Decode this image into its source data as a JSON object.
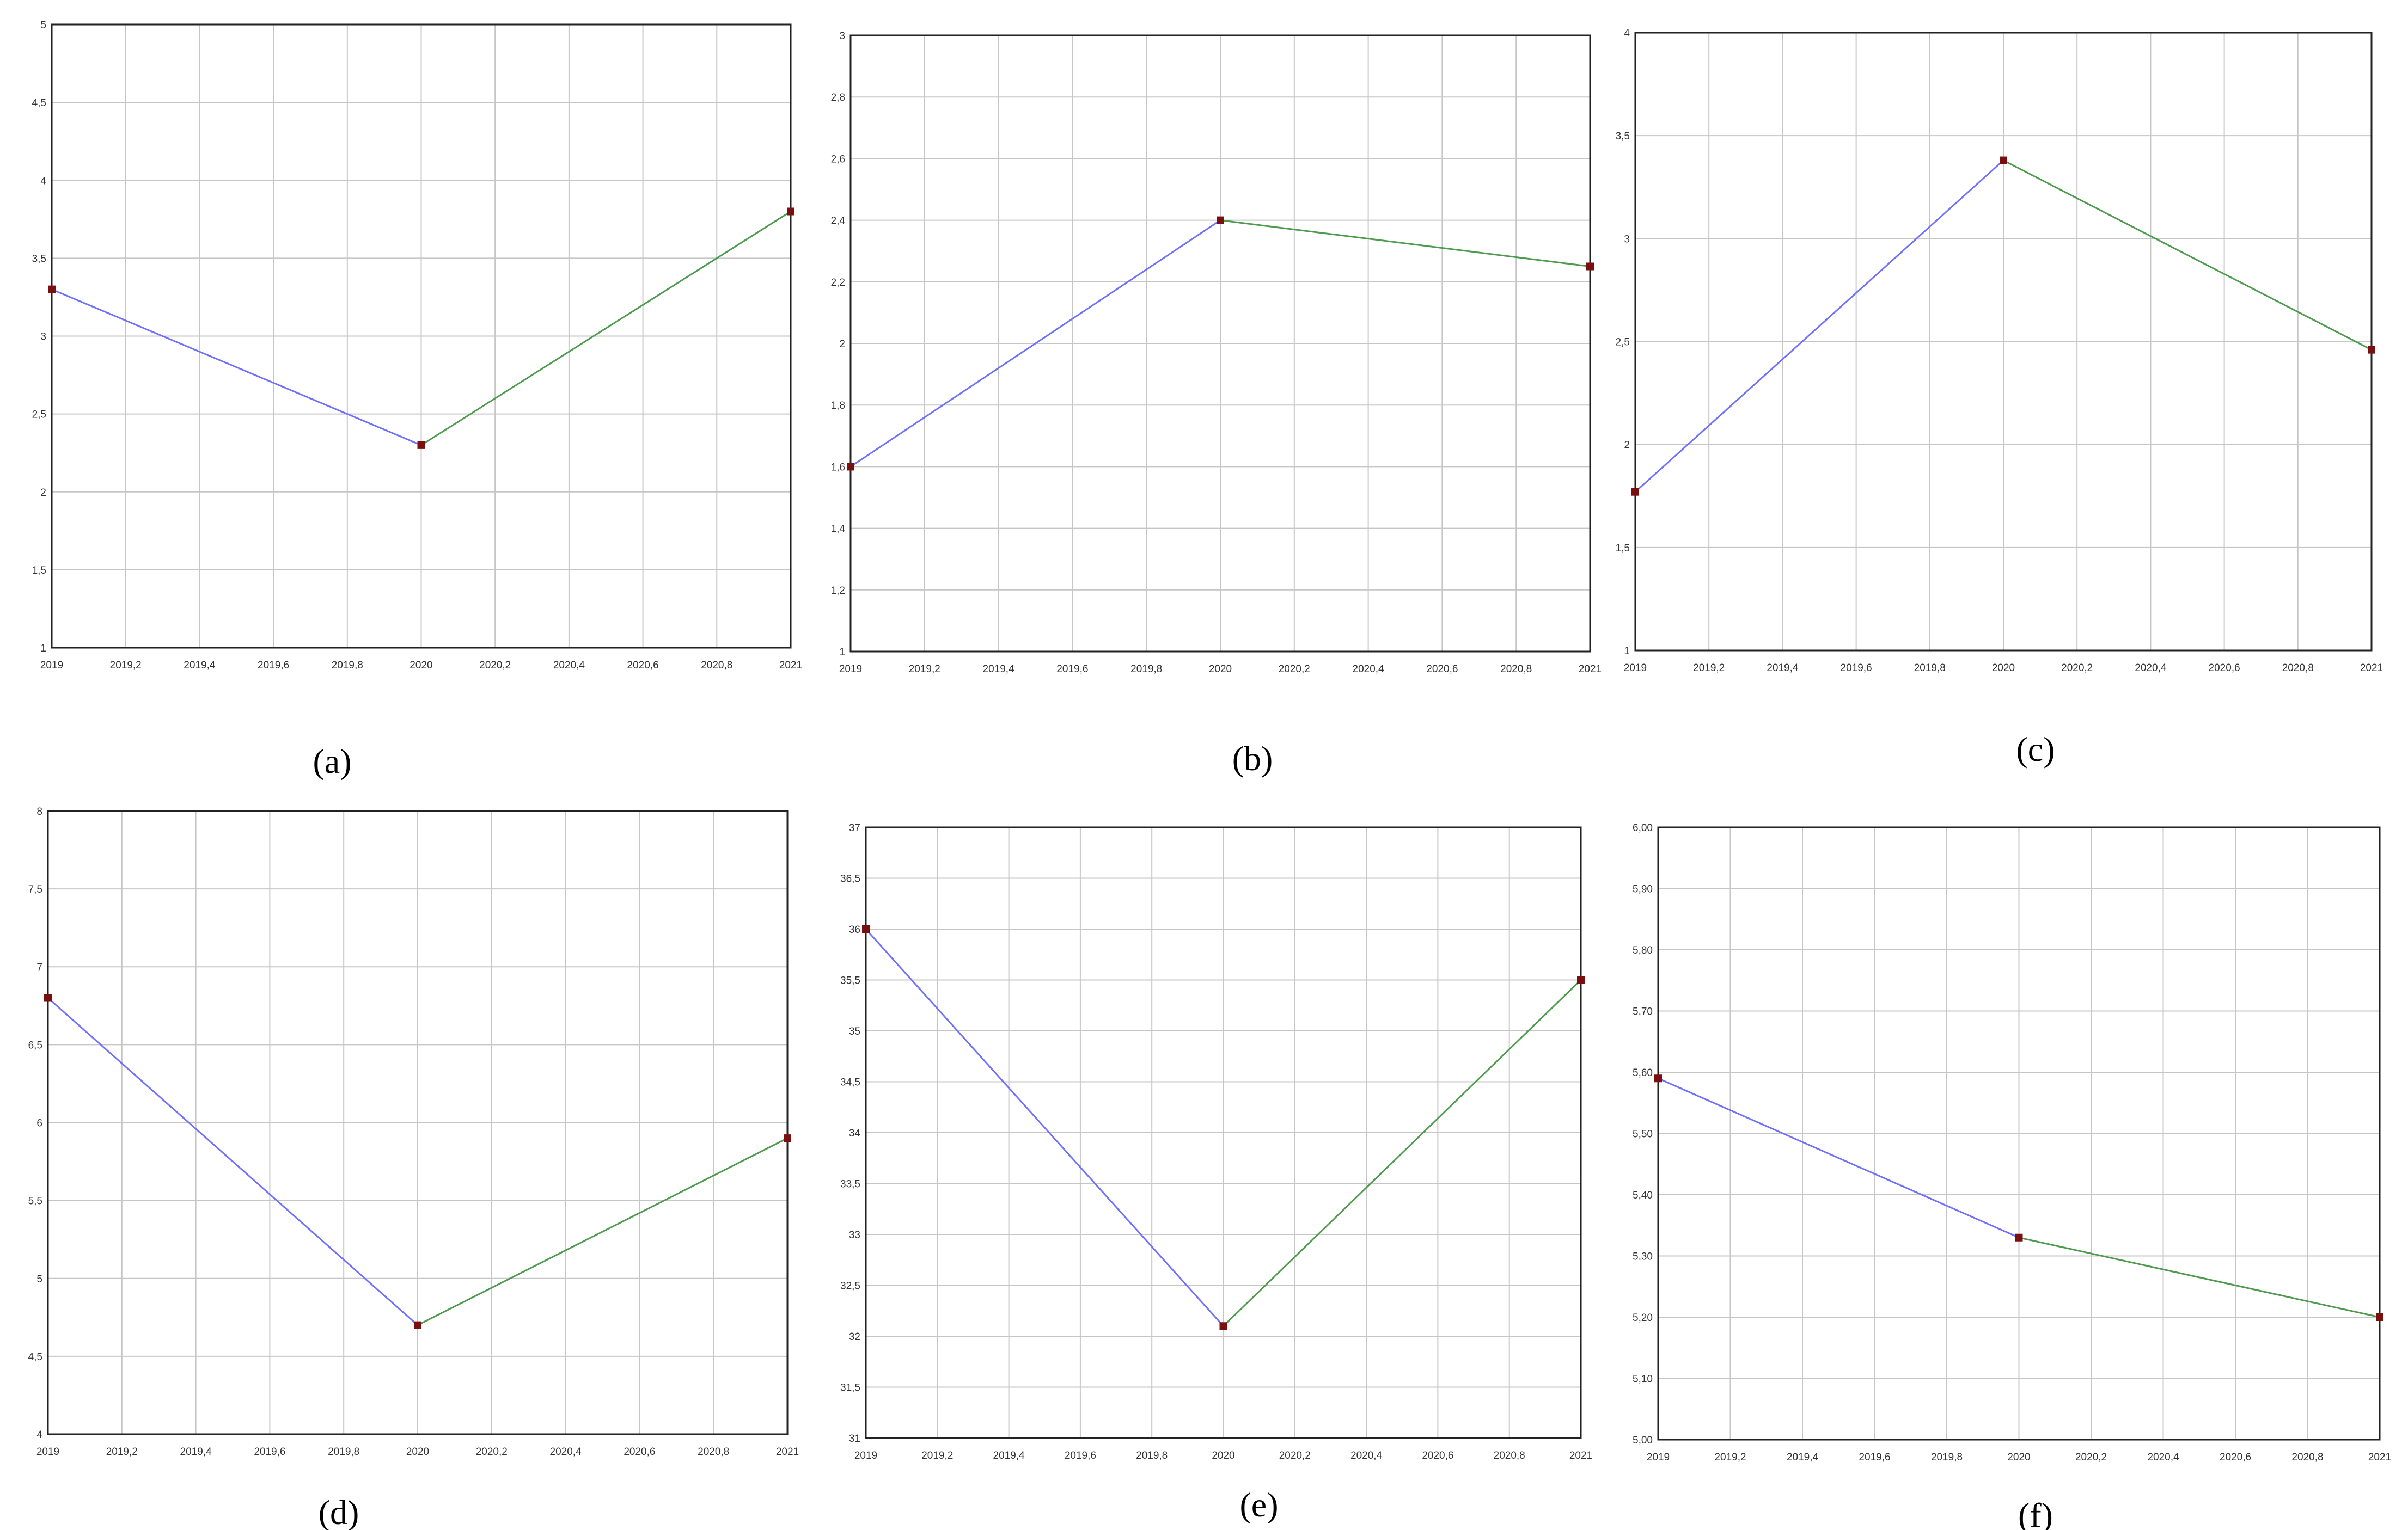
{
  "colors": {
    "series_1": "#7070ff",
    "series_2": "#4e9a4e",
    "marker": "#7a0f0f",
    "grid": "#c6c6c6",
    "frame": "#222222"
  },
  "chart_data": [
    {
      "type": "line",
      "caption": "(a)",
      "x_ticks": [
        "2019",
        "2019,2",
        "2019,4",
        "2019,6",
        "2019,8",
        "2020",
        "2020,2",
        "2020,4",
        "2020,6",
        "2020,8",
        "2021"
      ],
      "y_ticks": [
        "1",
        "1,5",
        "2",
        "2,5",
        "3",
        "3,5",
        "4",
        "4,5",
        "5"
      ],
      "xlim": [
        2019,
        2021
      ],
      "ylim": [
        1,
        5
      ],
      "grid": true,
      "series": [
        {
          "x": [
            2019,
            2020
          ],
          "y": [
            3.3,
            2.3
          ],
          "color": "#7070ff"
        },
        {
          "x": [
            2020,
            2021
          ],
          "y": [
            2.3,
            3.8
          ],
          "color": "#4e9a4e"
        }
      ]
    },
    {
      "type": "line",
      "caption": "(b)",
      "x_ticks": [
        "2019",
        "2019,2",
        "2019,4",
        "2019,6",
        "2019,8",
        "2020",
        "2020,2",
        "2020,4",
        "2020,6",
        "2020,8",
        "2021"
      ],
      "y_ticks": [
        "1",
        "1,2",
        "1,4",
        "1,6",
        "1,8",
        "2",
        "2,2",
        "2,4",
        "2,6",
        "2,8",
        "3"
      ],
      "xlim": [
        2019,
        2021
      ],
      "ylim": [
        1,
        3
      ],
      "grid": true,
      "series": [
        {
          "x": [
            2019,
            2020
          ],
          "y": [
            1.6,
            2.4
          ],
          "color": "#7070ff"
        },
        {
          "x": [
            2020,
            2021
          ],
          "y": [
            2.4,
            2.25
          ],
          "color": "#4e9a4e"
        }
      ]
    },
    {
      "type": "line",
      "caption": "(c)",
      "x_ticks": [
        "2019",
        "2019,2",
        "2019,4",
        "2019,6",
        "2019,8",
        "2020",
        "2020,2",
        "2020,4",
        "2020,6",
        "2020,8",
        "2021"
      ],
      "y_ticks": [
        "1",
        "1,5",
        "2",
        "2,5",
        "3",
        "3,5",
        "4"
      ],
      "xlim": [
        2019,
        2021
      ],
      "ylim": [
        1,
        4
      ],
      "grid": true,
      "series": [
        {
          "x": [
            2019,
            2020
          ],
          "y": [
            1.77,
            3.38
          ],
          "color": "#7070ff"
        },
        {
          "x": [
            2020,
            2021
          ],
          "y": [
            3.38,
            2.46
          ],
          "color": "#4e9a4e"
        }
      ]
    },
    {
      "type": "line",
      "caption": "(d)",
      "x_ticks": [
        "2019",
        "2019,2",
        "2019,4",
        "2019,6",
        "2019,8",
        "2020",
        "2020,2",
        "2020,4",
        "2020,6",
        "2020,8",
        "2021"
      ],
      "y_ticks": [
        "4",
        "4,5",
        "5",
        "5,5",
        "6",
        "6,5",
        "7",
        "7,5",
        "8"
      ],
      "xlim": [
        2019,
        2021
      ],
      "ylim": [
        4,
        8
      ],
      "grid": true,
      "series": [
        {
          "x": [
            2019,
            2020
          ],
          "y": [
            6.8,
            4.7
          ],
          "color": "#7070ff"
        },
        {
          "x": [
            2020,
            2021
          ],
          "y": [
            4.7,
            5.9
          ],
          "color": "#4e9a4e"
        }
      ]
    },
    {
      "type": "line",
      "caption": "(e)",
      "x_ticks": [
        "2019",
        "2019,2",
        "2019,4",
        "2019,6",
        "2019,8",
        "2020",
        "2020,2",
        "2020,4",
        "2020,6",
        "2020,8",
        "2021"
      ],
      "y_ticks": [
        "31",
        "31,5",
        "32",
        "32,5",
        "33",
        "33,5",
        "34",
        "34,5",
        "35",
        "35,5",
        "36",
        "36,5",
        "37"
      ],
      "xlim": [
        2019,
        2021
      ],
      "ylim": [
        31,
        37
      ],
      "grid": true,
      "series": [
        {
          "x": [
            2019,
            2020
          ],
          "y": [
            36,
            32.1
          ],
          "color": "#7070ff"
        },
        {
          "x": [
            2020,
            2021
          ],
          "y": [
            32.1,
            35.5
          ],
          "color": "#4e9a4e"
        }
      ]
    },
    {
      "type": "line",
      "caption": "(f)",
      "x_ticks": [
        "2019",
        "2019,2",
        "2019,4",
        "2019,6",
        "2019,8",
        "2020",
        "2020,2",
        "2020,4",
        "2020,6",
        "2020,8",
        "2021"
      ],
      "y_ticks": [
        "5,00",
        "5,10",
        "5,20",
        "5,30",
        "5,40",
        "5,50",
        "5,60",
        "5,70",
        "5,80",
        "5,90",
        "6,00"
      ],
      "xlim": [
        2019,
        2021
      ],
      "ylim": [
        5.0,
        6.0
      ],
      "grid": true,
      "series": [
        {
          "x": [
            2019,
            2020
          ],
          "y": [
            5.59,
            5.33
          ],
          "color": "#7070ff"
        },
        {
          "x": [
            2020,
            2021
          ],
          "y": [
            5.33,
            5.2
          ],
          "color": "#4e9a4e"
        }
      ]
    }
  ]
}
